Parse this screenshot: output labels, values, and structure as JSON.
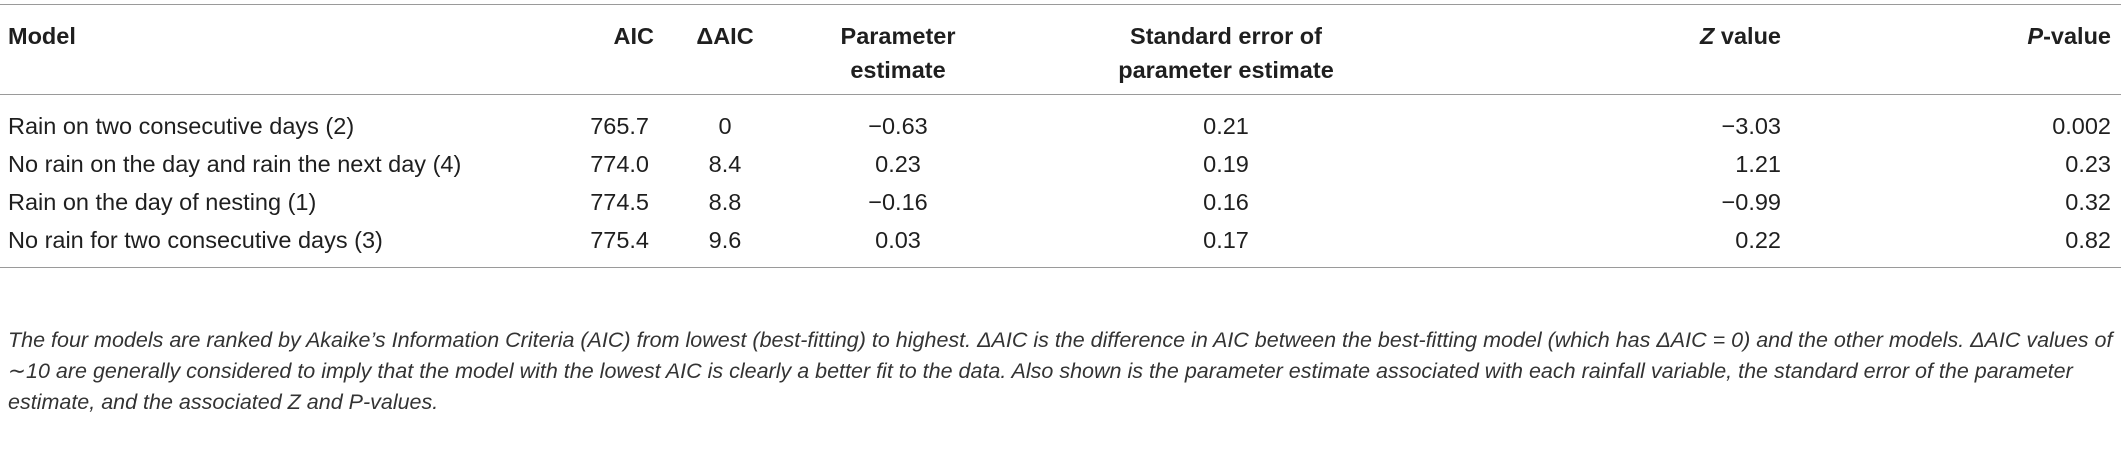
{
  "table": {
    "headers": {
      "model": "Model",
      "aic": "AIC",
      "delta_aic": "ΔAIC",
      "param_estimate_line1": "Parameter",
      "param_estimate_line2": "estimate",
      "std_error_line1": "Standard error of",
      "std_error_line2": "parameter estimate",
      "z_italic": "Z",
      "z_rest": " value",
      "p_italic": "P",
      "p_rest": "-value"
    },
    "rows": [
      {
        "model": "Rain on two consecutive days (2)",
        "aic": "765.7",
        "delta_aic": "0",
        "estimate": "−0.63",
        "std_error": "0.21",
        "z": "−3.03",
        "p": "0.002"
      },
      {
        "model": "No rain on the day and rain the next day (4)",
        "aic": "774.0",
        "delta_aic": "8.4",
        "estimate": "0.23",
        "std_error": "0.19",
        "z": "1.21",
        "p": "0.23"
      },
      {
        "model": "Rain on the day of nesting (1)",
        "aic": "774.5",
        "delta_aic": "8.8",
        "estimate": "−0.16",
        "std_error": "0.16",
        "z": "−0.99",
        "p": "0.32"
      },
      {
        "model": "No rain for two consecutive days (3)",
        "aic": "775.4",
        "delta_aic": "9.6",
        "estimate": "0.03",
        "std_error": "0.17",
        "z": "0.22",
        "p": "0.82"
      }
    ]
  },
  "caption": "The four models are ranked by Akaike’s Information Criteria (AIC) from lowest (best-fitting) to highest. ΔAIC is the difference in AIC between the best-fitting model (which has ΔAIC = 0) and the other models. ΔAIC values of ∼10 are generally considered to imply that the model with the lowest AIC is clearly a better fit to the data. Also shown is the parameter estimate associated with each rainfall variable, the standard error of the parameter estimate, and the associated Z and P-values."
}
